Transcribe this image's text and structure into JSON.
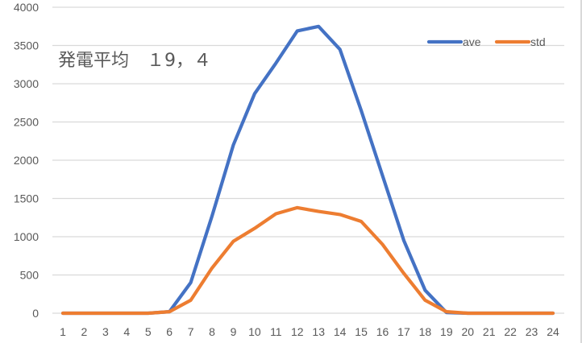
{
  "chart_data": {
    "type": "line",
    "title": "発電平均　１9，４",
    "xlabel": "",
    "ylabel": "",
    "x": [
      1,
      2,
      3,
      4,
      5,
      6,
      7,
      8,
      9,
      10,
      11,
      12,
      13,
      14,
      15,
      16,
      17,
      18,
      19,
      20,
      21,
      22,
      23,
      24
    ],
    "categories": [
      "1",
      "2",
      "3",
      "4",
      "5",
      "6",
      "7",
      "8",
      "9",
      "10",
      "11",
      "12",
      "13",
      "14",
      "15",
      "16",
      "17",
      "18",
      "19",
      "20",
      "21",
      "22",
      "23",
      "24"
    ],
    "series": [
      {
        "name": "ave",
        "color": "#4472c4",
        "values": [
          0,
          0,
          0,
          0,
          0,
          20,
          400,
          1270,
          2200,
          2870,
          3270,
          3690,
          3750,
          3450,
          2650,
          1800,
          950,
          300,
          10,
          0,
          0,
          0,
          0,
          0
        ]
      },
      {
        "name": "std",
        "color": "#ed7d31",
        "values": [
          0,
          0,
          0,
          0,
          0,
          20,
          170,
          590,
          940,
          1110,
          1300,
          1380,
          1330,
          1290,
          1200,
          900,
          520,
          170,
          20,
          0,
          0,
          0,
          0,
          0
        ]
      }
    ],
    "ylim": [
      0,
      4000
    ],
    "yticks": [
      0,
      500,
      1000,
      1500,
      2000,
      2500,
      3000,
      3500,
      4000
    ],
    "grid": true,
    "legend_position": "top-right"
  }
}
